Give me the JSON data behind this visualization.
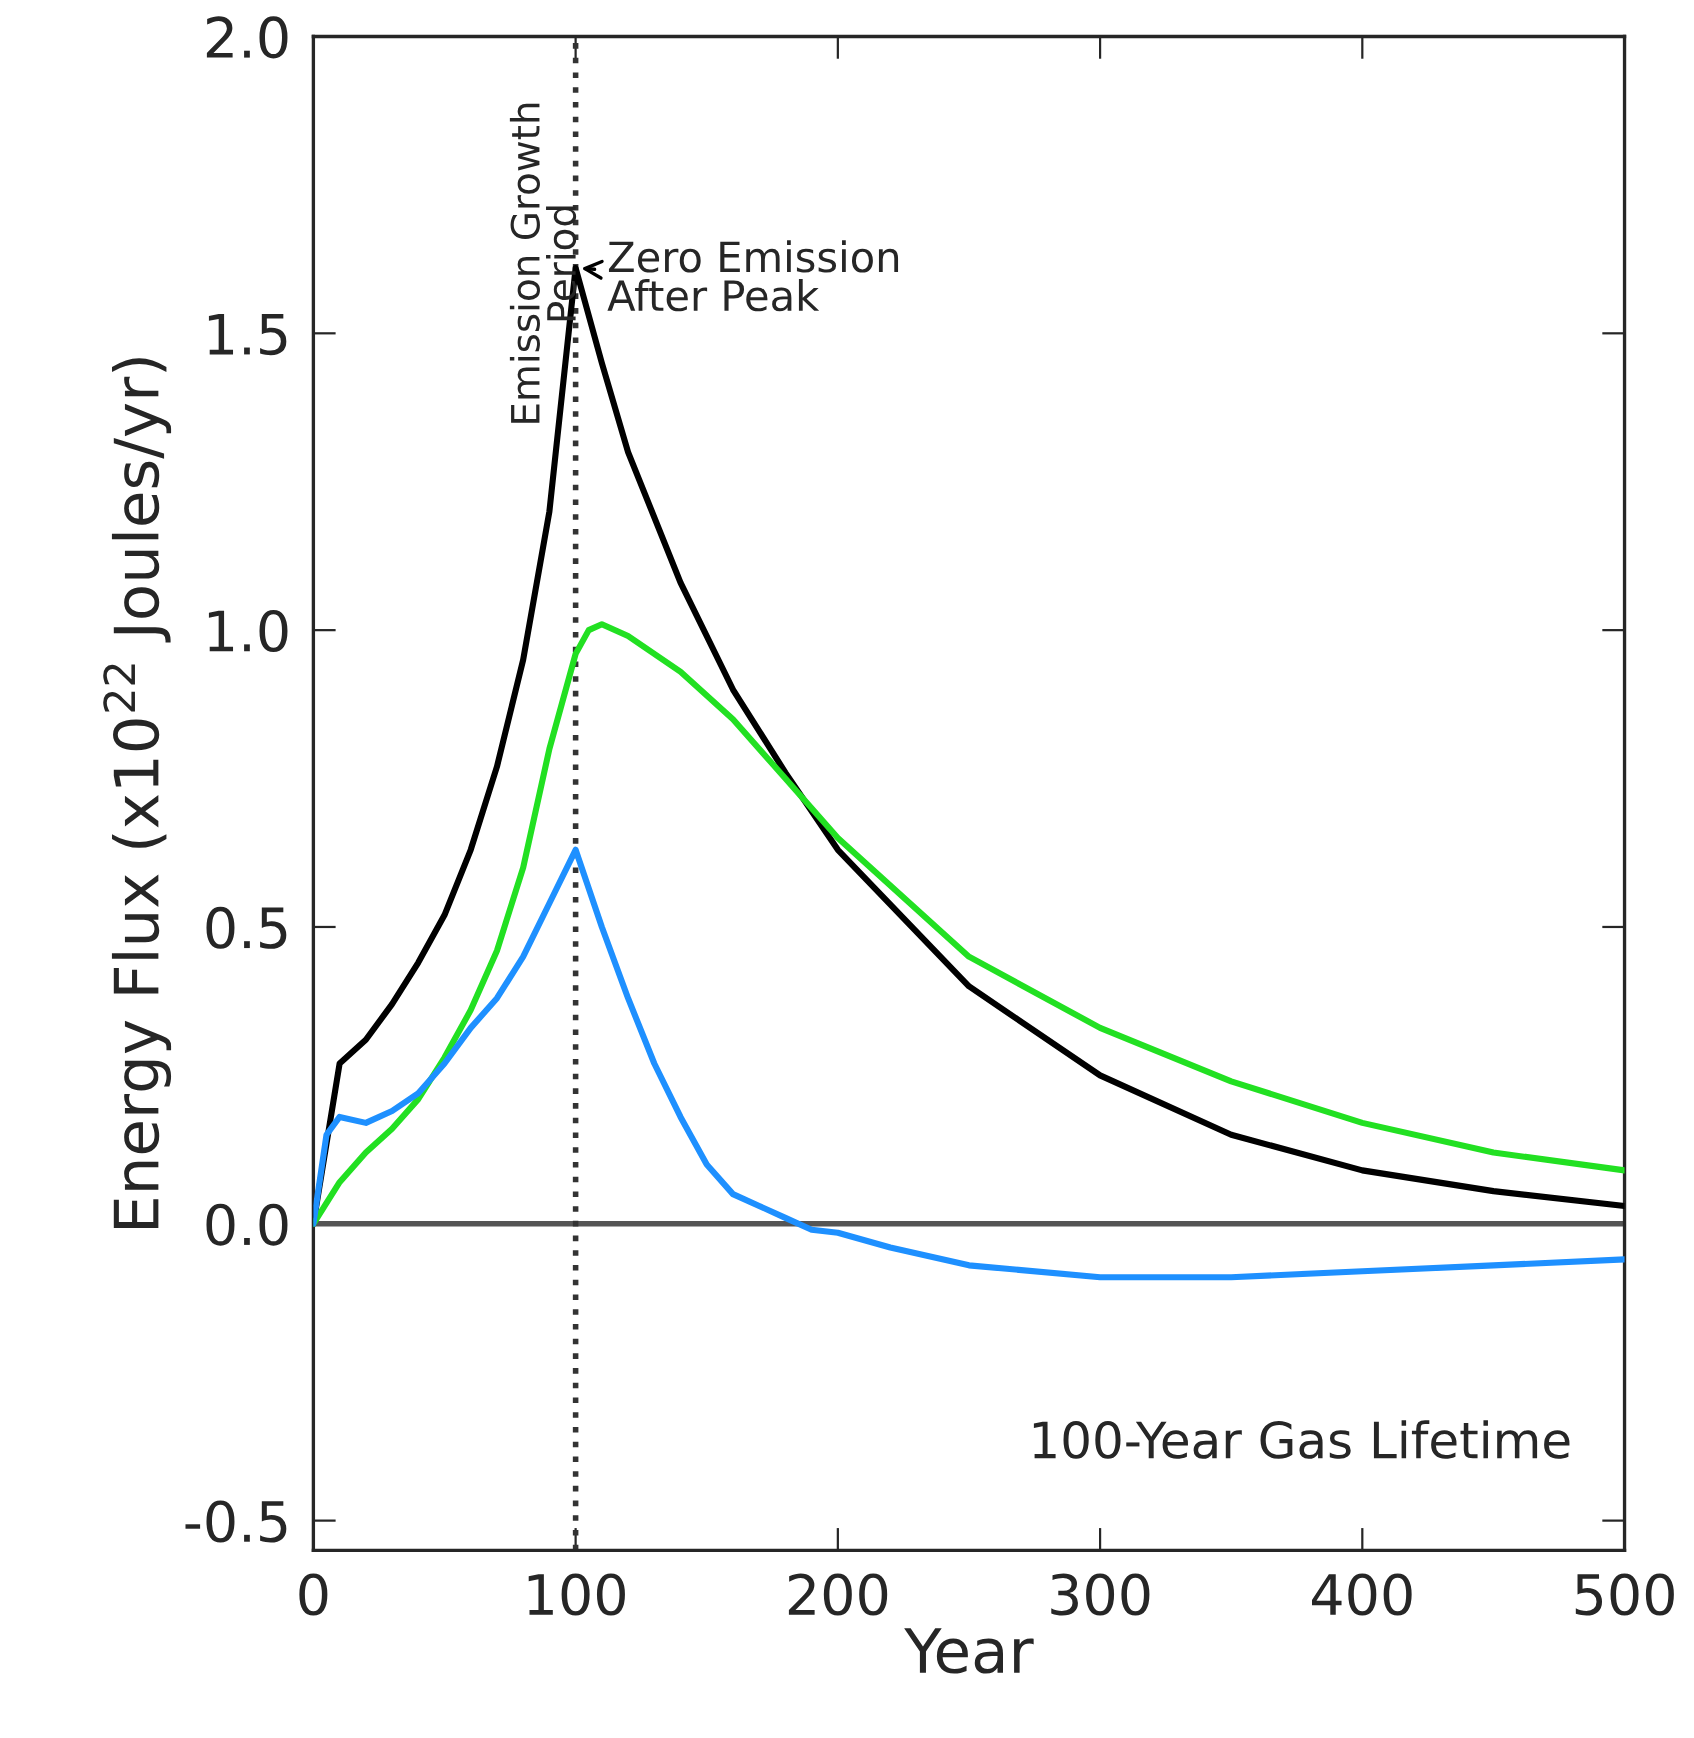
{
  "chart_data": {
    "type": "line",
    "xlabel": "Year",
    "ylabel": "Energy Flux (x10$^{22}$ Joules/yr)",
    "xlim": [
      0,
      500
    ],
    "xticks": [
      0,
      100,
      200,
      300,
      400,
      500
    ],
    "ylim": [
      -0.55,
      2.0
    ],
    "yticks": [
      {
        "value": -0.5,
        "label": "-0.5"
      },
      {
        "value": 0,
        "label": "0.0"
      },
      {
        "value": 0.5,
        "label": "0.5"
      },
      {
        "value": 1.0,
        "label": "1.0"
      },
      {
        "value": 1.5,
        "label": "1.5"
      },
      {
        "value": 2.0,
        "label": "2.0"
      }
    ],
    "grid": false,
    "legend": false,
    "marker": "none",
    "line_style": "solid",
    "series": [
      {
        "color": "#000000",
        "x": [
          0,
          10,
          20,
          30,
          40,
          50,
          60,
          70,
          80,
          90,
          100,
          110,
          120,
          140,
          160,
          180,
          200,
          250,
          300,
          350,
          400,
          450,
          500
        ],
        "values": [
          0,
          0.27,
          0.31,
          0.37,
          0.44,
          0.52,
          0.63,
          0.77,
          0.95,
          1.2,
          1.61,
          1.45,
          1.3,
          1.08,
          0.9,
          0.76,
          0.63,
          0.4,
          0.25,
          0.15,
          0.09,
          0.055,
          0.03
        ]
      },
      {
        "color": "#22e022",
        "x": [
          0,
          10,
          20,
          30,
          40,
          50,
          60,
          70,
          80,
          90,
          100,
          105,
          110,
          120,
          140,
          160,
          180,
          200,
          250,
          300,
          350,
          400,
          450,
          500
        ],
        "values": [
          0,
          0.07,
          0.12,
          0.16,
          0.21,
          0.28,
          0.36,
          0.46,
          0.6,
          0.8,
          0.96,
          1.0,
          1.01,
          0.99,
          0.93,
          0.85,
          0.75,
          0.65,
          0.45,
          0.33,
          0.24,
          0.17,
          0.12,
          0.09
        ]
      },
      {
        "color": "#1e90ff",
        "x": [
          0,
          5,
          10,
          20,
          30,
          40,
          50,
          60,
          70,
          80,
          90,
          100,
          110,
          120,
          130,
          140,
          150,
          160,
          170,
          180,
          190,
          200,
          220,
          250,
          300,
          350,
          400,
          450,
          500
        ],
        "values": [
          0,
          0.15,
          0.18,
          0.17,
          0.19,
          0.22,
          0.27,
          0.33,
          0.38,
          0.45,
          0.54,
          0.63,
          0.5,
          0.38,
          0.27,
          0.18,
          0.1,
          0.05,
          0.03,
          0.01,
          -0.01,
          -0.015,
          -0.04,
          -0.07,
          -0.09,
          -0.09,
          -0.08,
          -0.07,
          -0.06
        ]
      }
    ],
    "ref_lines": [
      {
        "axis": "y",
        "value": 0,
        "color": "#555555",
        "line_style": "solid"
      },
      {
        "axis": "x",
        "value": 100,
        "color": "#333333",
        "line_style": "dotted"
      }
    ],
    "annotations": [
      "Emission Growth\nPeriod",
      {
        "text": "Zero Emission\nAfter Peak",
        "x": 100,
        "y": 1.61
      },
      "100-Year Gas Lifetime"
    ]
  }
}
